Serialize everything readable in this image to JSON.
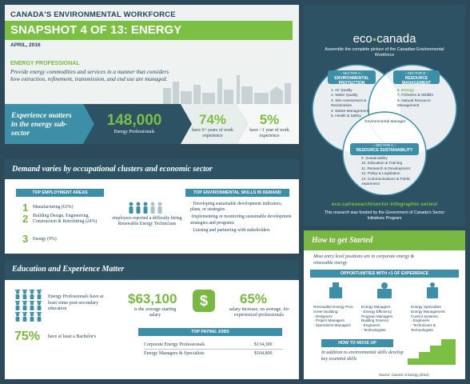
{
  "header": {
    "org_title": "CANADA'S ENVIRONMENTAL WORKFORCE",
    "snapshot_title": "SNAPSHOT 4 OF 13: ENERGY",
    "date": "APRIL, 2016",
    "profile_title": "ENERGY PROFESSIONAL",
    "profile_desc": "Provide energy commodities and services in a manner that considers how extraction, refinement, transmission, and end use are managed."
  },
  "experience": {
    "label": "Experience matters in the energy sub-sector",
    "stats": [
      {
        "value": "148,000",
        "caption": "Energy Professionals"
      },
      {
        "value": "74%",
        "caption": "have 6+ years of work experience"
      },
      {
        "value": "5%",
        "caption": "have <1 year of work experience"
      }
    ]
  },
  "sector_panel": {
    "logo_left": "eco",
    "logo_right": "canada",
    "intro": "Assemble the complete picture of the Canadian Environmental Workforce",
    "sector_a": {
      "tag": "– SECTOR A –",
      "title": "ENVIRONMENTAL PROTECTION",
      "items": [
        "1. Air Quality",
        "2. Water Quality",
        "3. Site Assessment & Reclamation",
        "4. Waste Management",
        "5. Health & Safety"
      ]
    },
    "sector_b": {
      "tag": "– SECTOR B –",
      "title": "RESOURCE MANAGEMENT",
      "items": [
        "6. Energy",
        "7. Fisheries & Wildlife",
        "8. Natural Resource Management"
      ]
    },
    "sector_c": {
      "tag": "– SECTOR C –",
      "title": "RESOURCE SUSTAINABILITY",
      "items": [
        "9. Sustainability",
        "10. Education & Training",
        "11. Research & Development",
        "12. Policy & Legislation",
        "13. Communications & Public Awareness"
      ]
    },
    "center_label": "Environmental Manager",
    "url": "eco.ca/research/sector-infographic-series/",
    "funding": "This research was funded by the Government of Canada's Sector Initiatives Program"
  },
  "demand": {
    "header": "Demand varies by occupational clusters and economic sector",
    "areas_title": "TOP EMPLOYMENT AREAS",
    "areas": [
      {
        "num": "1",
        "text": "Manufacturing (63%)"
      },
      {
        "num": "2",
        "text": "Building Design, Engineering, Construction & Retrofitting (24%)"
      },
      {
        "num": "3",
        "text": "Energy (9%)"
      }
    ],
    "difficulty_text": "employers reported a difficulty hiring Renewable Energy Technicians",
    "skills_title": "TOP ENVIRONMENTAL SKILLS IN DEMAND",
    "skills": [
      "· Developing sustainable development indicators, plans, or strategies",
      "·Implementing or monitoring sustainable development strategies and programs",
      "· Liaising and partnering with stakeholders"
    ]
  },
  "education": {
    "header": "Education and Experience Matter",
    "postsec_text": "Energy Professionals have at least some post-secondary education",
    "bachelor_value": "75%",
    "bachelor_text": "have at least a Bachelor's",
    "salary_value": "$63,100",
    "salary_text": "is the average starting salary",
    "increase_value": "65%",
    "increase_text": "salary increase, on average, for experienced professionals",
    "jobs_title": "TOP PAYING JOBS",
    "jobs": [
      {
        "title": "Corporate Energy Professionals",
        "salary": "$134,300"
      },
      {
        "title": "Energy Managers & Specialists",
        "salary": "$104,800"
      }
    ]
  },
  "howto": {
    "header": "How to get Started",
    "intro": "Most entry level positions are in corporate energy & renewable energy",
    "opps_title": "OPPORTUNITIES WITH <1 OF EXPERIENCE",
    "opps": [
      {
        "title": "Renewable Energy Pros",
        "lines": [
          "Green Building:",
          "- Designers",
          "- Project Managers",
          "- Operations Managers"
        ]
      },
      {
        "title": "Energy Managers",
        "lines": [
          "- Energy Efficiency",
          "Program Managers",
          "Building Science:",
          "- Engineers",
          "- Technologists"
        ]
      },
      {
        "title": "Energy Specialists",
        "lines": [
          "Energy Management",
          "Control Systems:",
          "- Engineers",
          "- Technicians &",
          "Technologists"
        ]
      }
    ],
    "moveup_title": "HOW TO MOVE UP",
    "moveup_text": "In addition to environmental skills develop key essential skills"
  },
  "source": "Source: Careers in Energy (2013)",
  "colors": {
    "green": "#79b843",
    "navy": "#25465a",
    "teal": "#3d8fa7",
    "panel": "#2c5264"
  }
}
